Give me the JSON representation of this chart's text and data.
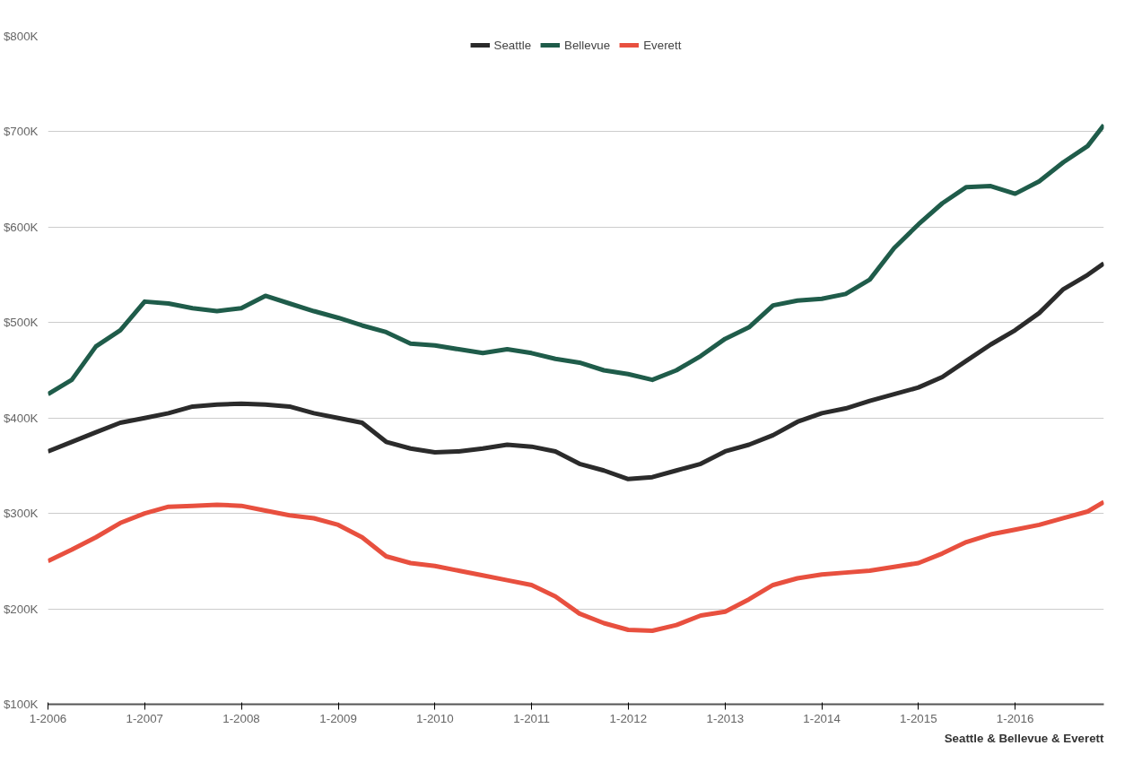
{
  "chart_data": {
    "type": "line",
    "x": [
      "2006-01",
      "2006-04",
      "2006-07",
      "2006-10",
      "2007-01",
      "2007-04",
      "2007-07",
      "2007-10",
      "2008-01",
      "2008-04",
      "2008-07",
      "2008-10",
      "2009-01",
      "2009-04",
      "2009-07",
      "2009-10",
      "2010-01",
      "2010-04",
      "2010-07",
      "2010-10",
      "2011-01",
      "2011-04",
      "2011-07",
      "2011-10",
      "2012-01",
      "2012-04",
      "2012-07",
      "2012-10",
      "2013-01",
      "2013-04",
      "2013-07",
      "2013-10",
      "2014-01",
      "2014-04",
      "2014-07",
      "2014-10",
      "2015-01",
      "2015-04",
      "2015-07",
      "2015-10",
      "2016-01",
      "2016-04",
      "2016-07",
      "2016-10",
      "2016-12"
    ],
    "series": [
      {
        "name": "Seattle",
        "color": "#2b2b2b",
        "values": [
          365,
          375,
          385,
          395,
          400,
          405,
          412,
          414,
          415,
          414,
          412,
          405,
          400,
          395,
          375,
          368,
          364,
          365,
          368,
          372,
          370,
          365,
          352,
          345,
          336,
          338,
          345,
          352,
          365,
          372,
          382,
          396,
          405,
          410,
          418,
          425,
          432,
          443,
          460,
          477,
          492,
          510,
          535,
          550,
          562
        ]
      },
      {
        "name": "Bellevue",
        "color": "#1f5c4a",
        "values": [
          425,
          440,
          475,
          492,
          522,
          520,
          515,
          512,
          515,
          528,
          520,
          512,
          505,
          497,
          490,
          478,
          476,
          472,
          468,
          472,
          468,
          462,
          458,
          450,
          446,
          440,
          450,
          465,
          483,
          495,
          518,
          523,
          525,
          530,
          545,
          578,
          603,
          625,
          642,
          643,
          635,
          648,
          668,
          685,
          707
        ]
      },
      {
        "name": "Everett",
        "color": "#e8503f",
        "values": [
          250,
          262,
          275,
          290,
          300,
          307,
          308,
          309,
          308,
          303,
          298,
          295,
          288,
          275,
          255,
          248,
          245,
          240,
          235,
          230,
          225,
          213,
          195,
          185,
          178,
          177,
          183,
          193,
          197,
          210,
          225,
          232,
          236,
          238,
          240,
          244,
          248,
          258,
          270,
          278,
          283,
          288,
          295,
          302,
          312
        ]
      }
    ],
    "xlim": [
      "2006-01",
      "2016-12"
    ],
    "xticks": [
      {
        "value": "2006-01",
        "label": "1-2006"
      },
      {
        "value": "2007-01",
        "label": "1-2007"
      },
      {
        "value": "2008-01",
        "label": "1-2008"
      },
      {
        "value": "2009-01",
        "label": "1-2009"
      },
      {
        "value": "2010-01",
        "label": "1-2010"
      },
      {
        "value": "2011-01",
        "label": "1-2011"
      },
      {
        "value": "2012-01",
        "label": "1-2012"
      },
      {
        "value": "2013-01",
        "label": "1-2013"
      },
      {
        "value": "2014-01",
        "label": "1-2014"
      },
      {
        "value": "2015-01",
        "label": "1-2015"
      },
      {
        "value": "2016-01",
        "label": "1-2016"
      }
    ],
    "ylim": [
      100,
      800
    ],
    "yticks": [
      {
        "value": 100,
        "label": "$100K"
      },
      {
        "value": 200,
        "label": "$200K"
      },
      {
        "value": 300,
        "label": "$300K"
      },
      {
        "value": 400,
        "label": "$400K"
      },
      {
        "value": 500,
        "label": "$500K"
      },
      {
        "value": 600,
        "label": "$600K"
      },
      {
        "value": 700,
        "label": "$700K"
      },
      {
        "value": 800,
        "label": "$800K"
      }
    ],
    "grid": "y",
    "legend": "top",
    "line_style": "solid",
    "annotations": [
      "Seattle & Bellevue & Everett"
    ]
  }
}
